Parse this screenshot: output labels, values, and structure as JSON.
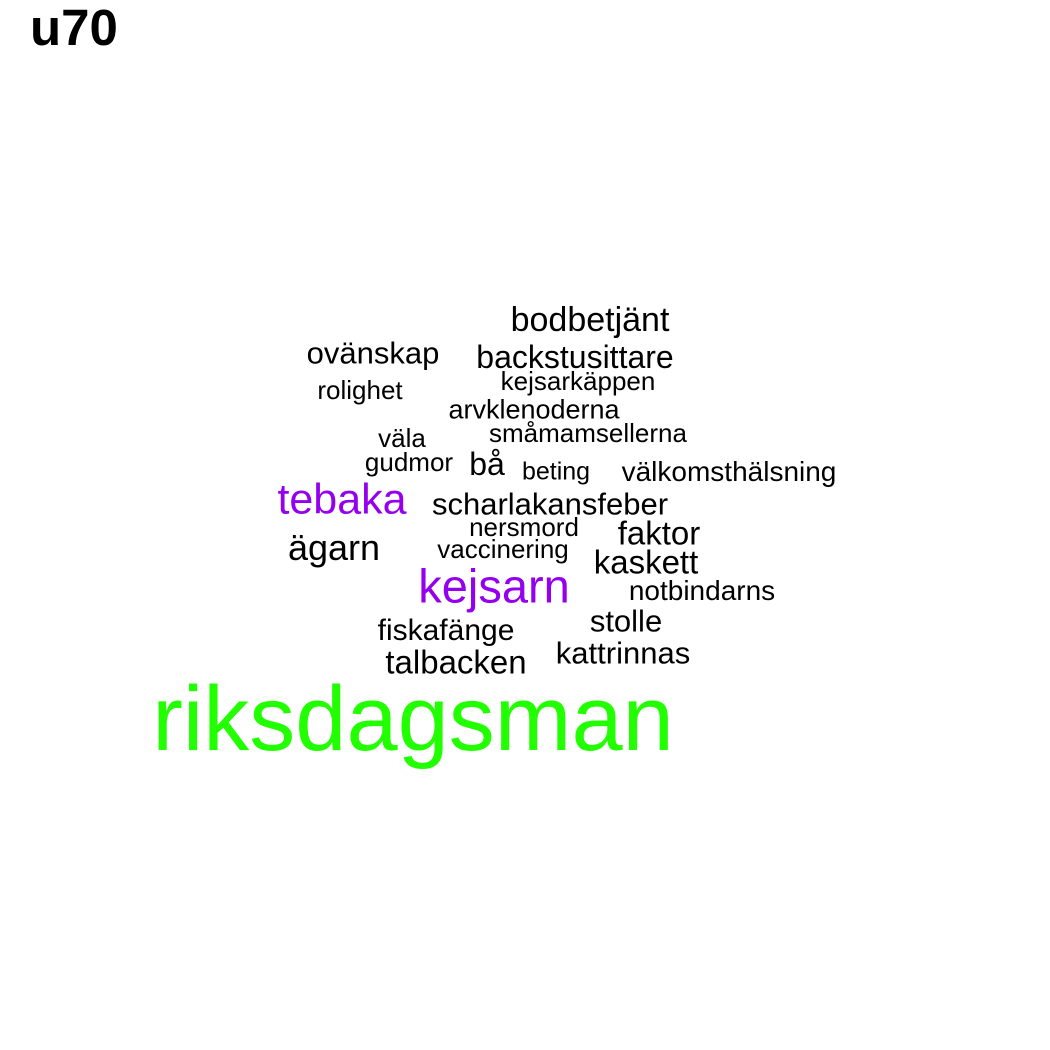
{
  "title": "u70",
  "words": [
    {
      "text": "bodbetjänt",
      "color": "#000000"
    },
    {
      "text": "ovänskap",
      "color": "#000000"
    },
    {
      "text": "backstusittare",
      "color": "#000000"
    },
    {
      "text": "kejsarkäppen",
      "color": "#000000"
    },
    {
      "text": "rolighet",
      "color": "#000000"
    },
    {
      "text": "arvklenoderna",
      "color": "#000000"
    },
    {
      "text": "väla",
      "color": "#000000"
    },
    {
      "text": "småmamsellerna",
      "color": "#000000"
    },
    {
      "text": "gudmor",
      "color": "#000000"
    },
    {
      "text": "bå",
      "color": "#000000"
    },
    {
      "text": "beting",
      "color": "#000000"
    },
    {
      "text": "välkomsthälsning",
      "color": "#000000"
    },
    {
      "text": "tebaka",
      "color": "#9400ee"
    },
    {
      "text": "scharlakansfeber",
      "color": "#000000"
    },
    {
      "text": "nersmord",
      "color": "#000000"
    },
    {
      "text": "faktor",
      "color": "#000000"
    },
    {
      "text": "ägarn",
      "color": "#000000"
    },
    {
      "text": "vaccinering",
      "color": "#000000"
    },
    {
      "text": "kaskett",
      "color": "#000000"
    },
    {
      "text": "kejsarn",
      "color": "#9400ee"
    },
    {
      "text": "notbindarns",
      "color": "#000000"
    },
    {
      "text": "stolle",
      "color": "#000000"
    },
    {
      "text": "fiskafänge",
      "color": "#000000"
    },
    {
      "text": "kattrinnas",
      "color": "#000000"
    },
    {
      "text": "talbacken",
      "color": "#000000"
    },
    {
      "text": "riksdagsman",
      "color": "#22ff00"
    }
  ]
}
